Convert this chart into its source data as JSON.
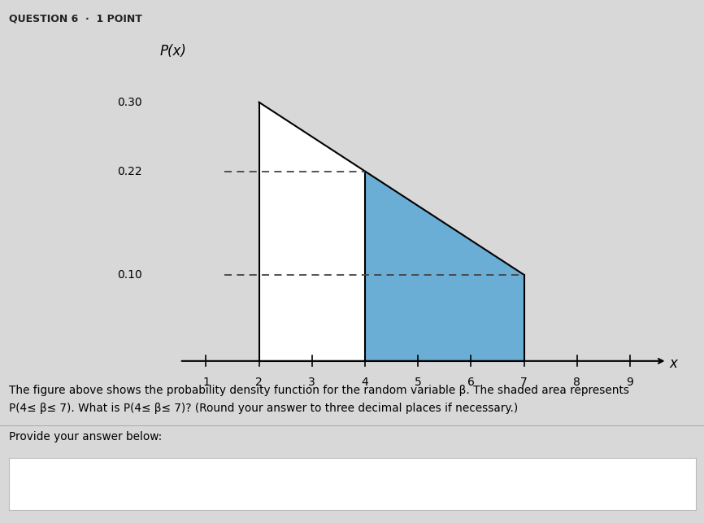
{
  "xlabel": "x",
  "ylabel": "P(x)",
  "bg_color": "#d8d8d8",
  "shade_color": "#6aadd5",
  "shade_edge_color": "#1a5276",
  "yticks": [
    0.1,
    0.22,
    0.3
  ],
  "xticks": [
    1,
    2,
    3,
    4,
    5,
    6,
    7,
    8,
    9
  ],
  "xlim": [
    0.5,
    9.8
  ],
  "ylim": [
    0,
    0.37
  ],
  "figsize": [
    8.66,
    6.43
  ],
  "dpi": 100,
  "question_text": "QUESTION 6  ·  1 POINT",
  "body_line1": "The figure above shows the probability density function for the random variable β. The shaded area represents",
  "body_line2": "P(4≤ β≤ 7). What is P(4≤ β≤ 7)? (Round your answer to three decimal places if necessary.)",
  "answer_prompt": "Provide your answer below:"
}
